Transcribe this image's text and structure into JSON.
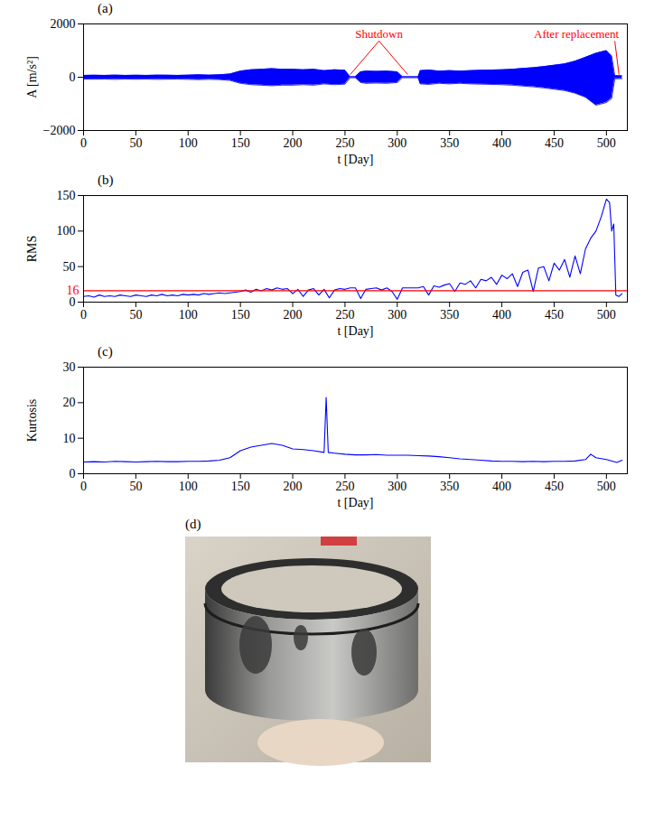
{
  "chart_data": [
    {
      "title": "(a)",
      "type": "area",
      "color": "#0000ff",
      "xlabel": "t [Day]",
      "ylabel": "A [m/s²]",
      "xlim": [
        0,
        520
      ],
      "ylim": [
        -2000,
        2000
      ],
      "xticks": [
        0,
        50,
        100,
        150,
        200,
        250,
        300,
        350,
        400,
        450,
        500
      ],
      "yticks": [
        -2000,
        0,
        2000
      ],
      "x": [
        0,
        10,
        20,
        30,
        40,
        50,
        60,
        70,
        80,
        90,
        100,
        110,
        120,
        130,
        140,
        150,
        160,
        170,
        180,
        190,
        200,
        210,
        220,
        230,
        240,
        250,
        255,
        260,
        265,
        270,
        280,
        290,
        300,
        305,
        310,
        320,
        322,
        330,
        340,
        350,
        360,
        370,
        380,
        390,
        400,
        410,
        420,
        430,
        440,
        450,
        460,
        470,
        480,
        490,
        500,
        505,
        508,
        515
      ],
      "upper": [
        70,
        75,
        70,
        80,
        70,
        75,
        70,
        80,
        75,
        70,
        80,
        90,
        80,
        90,
        120,
        230,
        280,
        300,
        320,
        300,
        300,
        280,
        300,
        250,
        280,
        260,
        20,
        20,
        200,
        230,
        220,
        230,
        200,
        20,
        20,
        20,
        250,
        270,
        230,
        250,
        230,
        250,
        260,
        270,
        280,
        300,
        330,
        360,
        400,
        450,
        500,
        600,
        750,
        900,
        1000,
        800,
        60,
        50
      ],
      "lower": [
        -70,
        -75,
        -70,
        -80,
        -70,
        -75,
        -70,
        -80,
        -75,
        -70,
        -80,
        -90,
        -80,
        -90,
        -120,
        -230,
        -280,
        -300,
        -320,
        -300,
        -300,
        -280,
        -300,
        -250,
        -280,
        -260,
        -20,
        -20,
        -200,
        -230,
        -220,
        -230,
        -200,
        -20,
        -20,
        -20,
        -250,
        -270,
        -230,
        -250,
        -230,
        -250,
        -260,
        -270,
        -280,
        -300,
        -330,
        -360,
        -400,
        -450,
        -500,
        -600,
        -750,
        -1050,
        -950,
        -800,
        -60,
        -50
      ],
      "annotations": [
        {
          "text": "Shutdown",
          "x": [
            255,
            310
          ],
          "color": "#ff0000"
        },
        {
          "text": "After replacement",
          "x": [
            512
          ],
          "color": "#ff0000"
        }
      ]
    },
    {
      "title": "(b)",
      "type": "line",
      "color": "#0000ff",
      "xlabel": "t [Day]",
      "ylabel": "RMS",
      "xlim": [
        0,
        520
      ],
      "ylim": [
        0,
        150
      ],
      "xticks": [
        0,
        50,
        100,
        150,
        200,
        250,
        300,
        350,
        400,
        450,
        500
      ],
      "yticks": [
        0,
        16,
        50,
        100,
        150
      ],
      "reference_lines": [
        {
          "value": 16,
          "color": "#ff0000"
        }
      ],
      "x": [
        0,
        5,
        10,
        15,
        20,
        25,
        30,
        35,
        40,
        45,
        50,
        55,
        60,
        65,
        70,
        75,
        80,
        85,
        90,
        95,
        100,
        105,
        110,
        115,
        120,
        125,
        130,
        135,
        140,
        145,
        150,
        155,
        160,
        165,
        170,
        175,
        180,
        185,
        190,
        195,
        200,
        205,
        210,
        215,
        220,
        225,
        230,
        235,
        240,
        245,
        250,
        255,
        260,
        265,
        270,
        275,
        280,
        285,
        290,
        295,
        300,
        305,
        310,
        315,
        320,
        325,
        330,
        335,
        340,
        345,
        350,
        355,
        360,
        365,
        370,
        375,
        380,
        385,
        390,
        395,
        400,
        405,
        410,
        415,
        420,
        425,
        430,
        435,
        440,
        445,
        450,
        455,
        460,
        465,
        470,
        475,
        480,
        485,
        490,
        495,
        500,
        503,
        505,
        507,
        509,
        512,
        515
      ],
      "values": [
        8,
        9,
        7,
        10,
        8,
        9,
        8,
        10,
        9,
        8,
        10,
        9,
        8,
        10,
        9,
        11,
        9,
        10,
        9,
        11,
        10,
        11,
        10,
        12,
        11,
        12,
        13,
        12,
        13,
        14,
        15,
        17,
        14,
        18,
        16,
        19,
        17,
        20,
        18,
        19,
        12,
        18,
        8,
        17,
        19,
        10,
        18,
        6,
        17,
        19,
        18,
        20,
        20,
        5,
        18,
        19,
        20,
        17,
        20,
        15,
        4,
        20,
        20,
        20,
        20,
        22,
        10,
        23,
        21,
        24,
        26,
        15,
        27,
        25,
        30,
        20,
        32,
        30,
        35,
        25,
        38,
        33,
        40,
        22,
        42,
        45,
        15,
        48,
        50,
        30,
        55,
        45,
        60,
        35,
        65,
        40,
        75,
        90,
        100,
        120,
        145,
        140,
        100,
        110,
        10,
        8,
        12
      ]
    },
    {
      "title": "(c)",
      "type": "line",
      "color": "#0000ff",
      "xlabel": "t [Day]",
      "ylabel": "Kurtosis",
      "xlim": [
        0,
        520
      ],
      "ylim": [
        0,
        30
      ],
      "xticks": [
        0,
        50,
        100,
        150,
        200,
        250,
        300,
        350,
        400,
        450,
        500
      ],
      "yticks": [
        0,
        10,
        20,
        30
      ],
      "x": [
        0,
        10,
        20,
        30,
        40,
        50,
        60,
        70,
        80,
        90,
        100,
        110,
        120,
        130,
        140,
        150,
        160,
        170,
        180,
        190,
        200,
        210,
        220,
        230,
        232,
        234,
        240,
        250,
        260,
        270,
        280,
        290,
        300,
        310,
        320,
        330,
        340,
        350,
        360,
        370,
        380,
        390,
        400,
        410,
        420,
        430,
        440,
        450,
        460,
        470,
        480,
        485,
        490,
        500,
        510,
        515
      ],
      "values": [
        3.3,
        3.4,
        3.3,
        3.5,
        3.4,
        3.3,
        3.4,
        3.5,
        3.4,
        3.4,
        3.5,
        3.5,
        3.6,
        3.8,
        4.5,
        6.5,
        7.5,
        8,
        8.5,
        8,
        7,
        6.8,
        6.5,
        6,
        21.5,
        6,
        5.8,
        5.5,
        5.3,
        5.3,
        5.4,
        5.2,
        5.2,
        5.2,
        5.1,
        5,
        4.8,
        4.5,
        4.2,
        4,
        3.8,
        3.6,
        3.5,
        3.5,
        3.4,
        3.5,
        3.4,
        3.5,
        3.5,
        3.6,
        4,
        5.5,
        4.5,
        4,
        3.2,
        3.8
      ]
    }
  ],
  "image": {
    "title": "(d)"
  }
}
